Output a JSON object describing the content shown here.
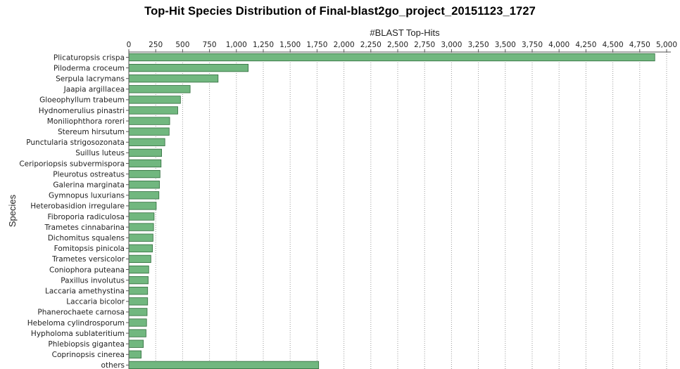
{
  "colors": {
    "bar_fill": "#71b77f",
    "bar_stroke": "#2f6b3b",
    "grid": "#9a9a9a",
    "axis": "#555555"
  },
  "chart_data": {
    "type": "bar",
    "orientation": "horizontal",
    "title": "Top-Hit Species Distribution of Final-blast2go_project_20151123_1727",
    "xlabel": "#BLAST Top-Hits",
    "ylabel": "Species",
    "xlim": [
      0,
      5000
    ],
    "xticks": [
      0,
      250,
      500,
      750,
      1000,
      1250,
      1500,
      1750,
      2000,
      2250,
      2500,
      2750,
      3000,
      3250,
      3500,
      3750,
      4000,
      4250,
      4500,
      4750,
      5000
    ],
    "xtick_labels": [
      "0",
      "250",
      "500",
      "750",
      "1,000",
      "1,250",
      "1,500",
      "1,750",
      "2,000",
      "2,250",
      "2,500",
      "2,750",
      "3,000",
      "3,250",
      "3,500",
      "3,750",
      "4,000",
      "4,250",
      "4,500",
      "4,750",
      "5,000"
    ],
    "x_axis_position": "top",
    "grid": true,
    "categories": [
      "Plicaturopsis crispa",
      "Piloderma croceum",
      "Serpula lacrymans",
      "Jaapia argillacea",
      "Gloeophyllum trabeum",
      "Hydnomerulius pinastri",
      "Moniliophthora roreri",
      "Stereum hirsutum",
      "Punctularia strigosozonata",
      "Suillus luteus",
      "Ceriporiopsis subvermispora",
      "Pleurotus ostreatus",
      "Galerina marginata",
      "Gymnopus luxurians",
      "Heterobasidion irregulare",
      "Fibroporia radiculosa",
      "Trametes cinnabarina",
      "Dichomitus squalens",
      "Fomitopsis pinicola",
      "Trametes versicolor",
      "Coniophora puteana",
      "Paxillus involutus",
      "Laccaria amethystina",
      "Laccaria bicolor",
      "Phanerochaete carnosa",
      "Hebeloma cylindrosporum",
      "Hypholoma sublateritium",
      "Phlebiopsis gigantea",
      "Coprinopsis cinerea",
      "others"
    ],
    "values": [
      4890,
      1110,
      830,
      570,
      480,
      455,
      380,
      375,
      335,
      305,
      300,
      290,
      285,
      280,
      255,
      235,
      230,
      225,
      220,
      205,
      185,
      180,
      175,
      175,
      170,
      165,
      160,
      135,
      115,
      1765
    ]
  }
}
